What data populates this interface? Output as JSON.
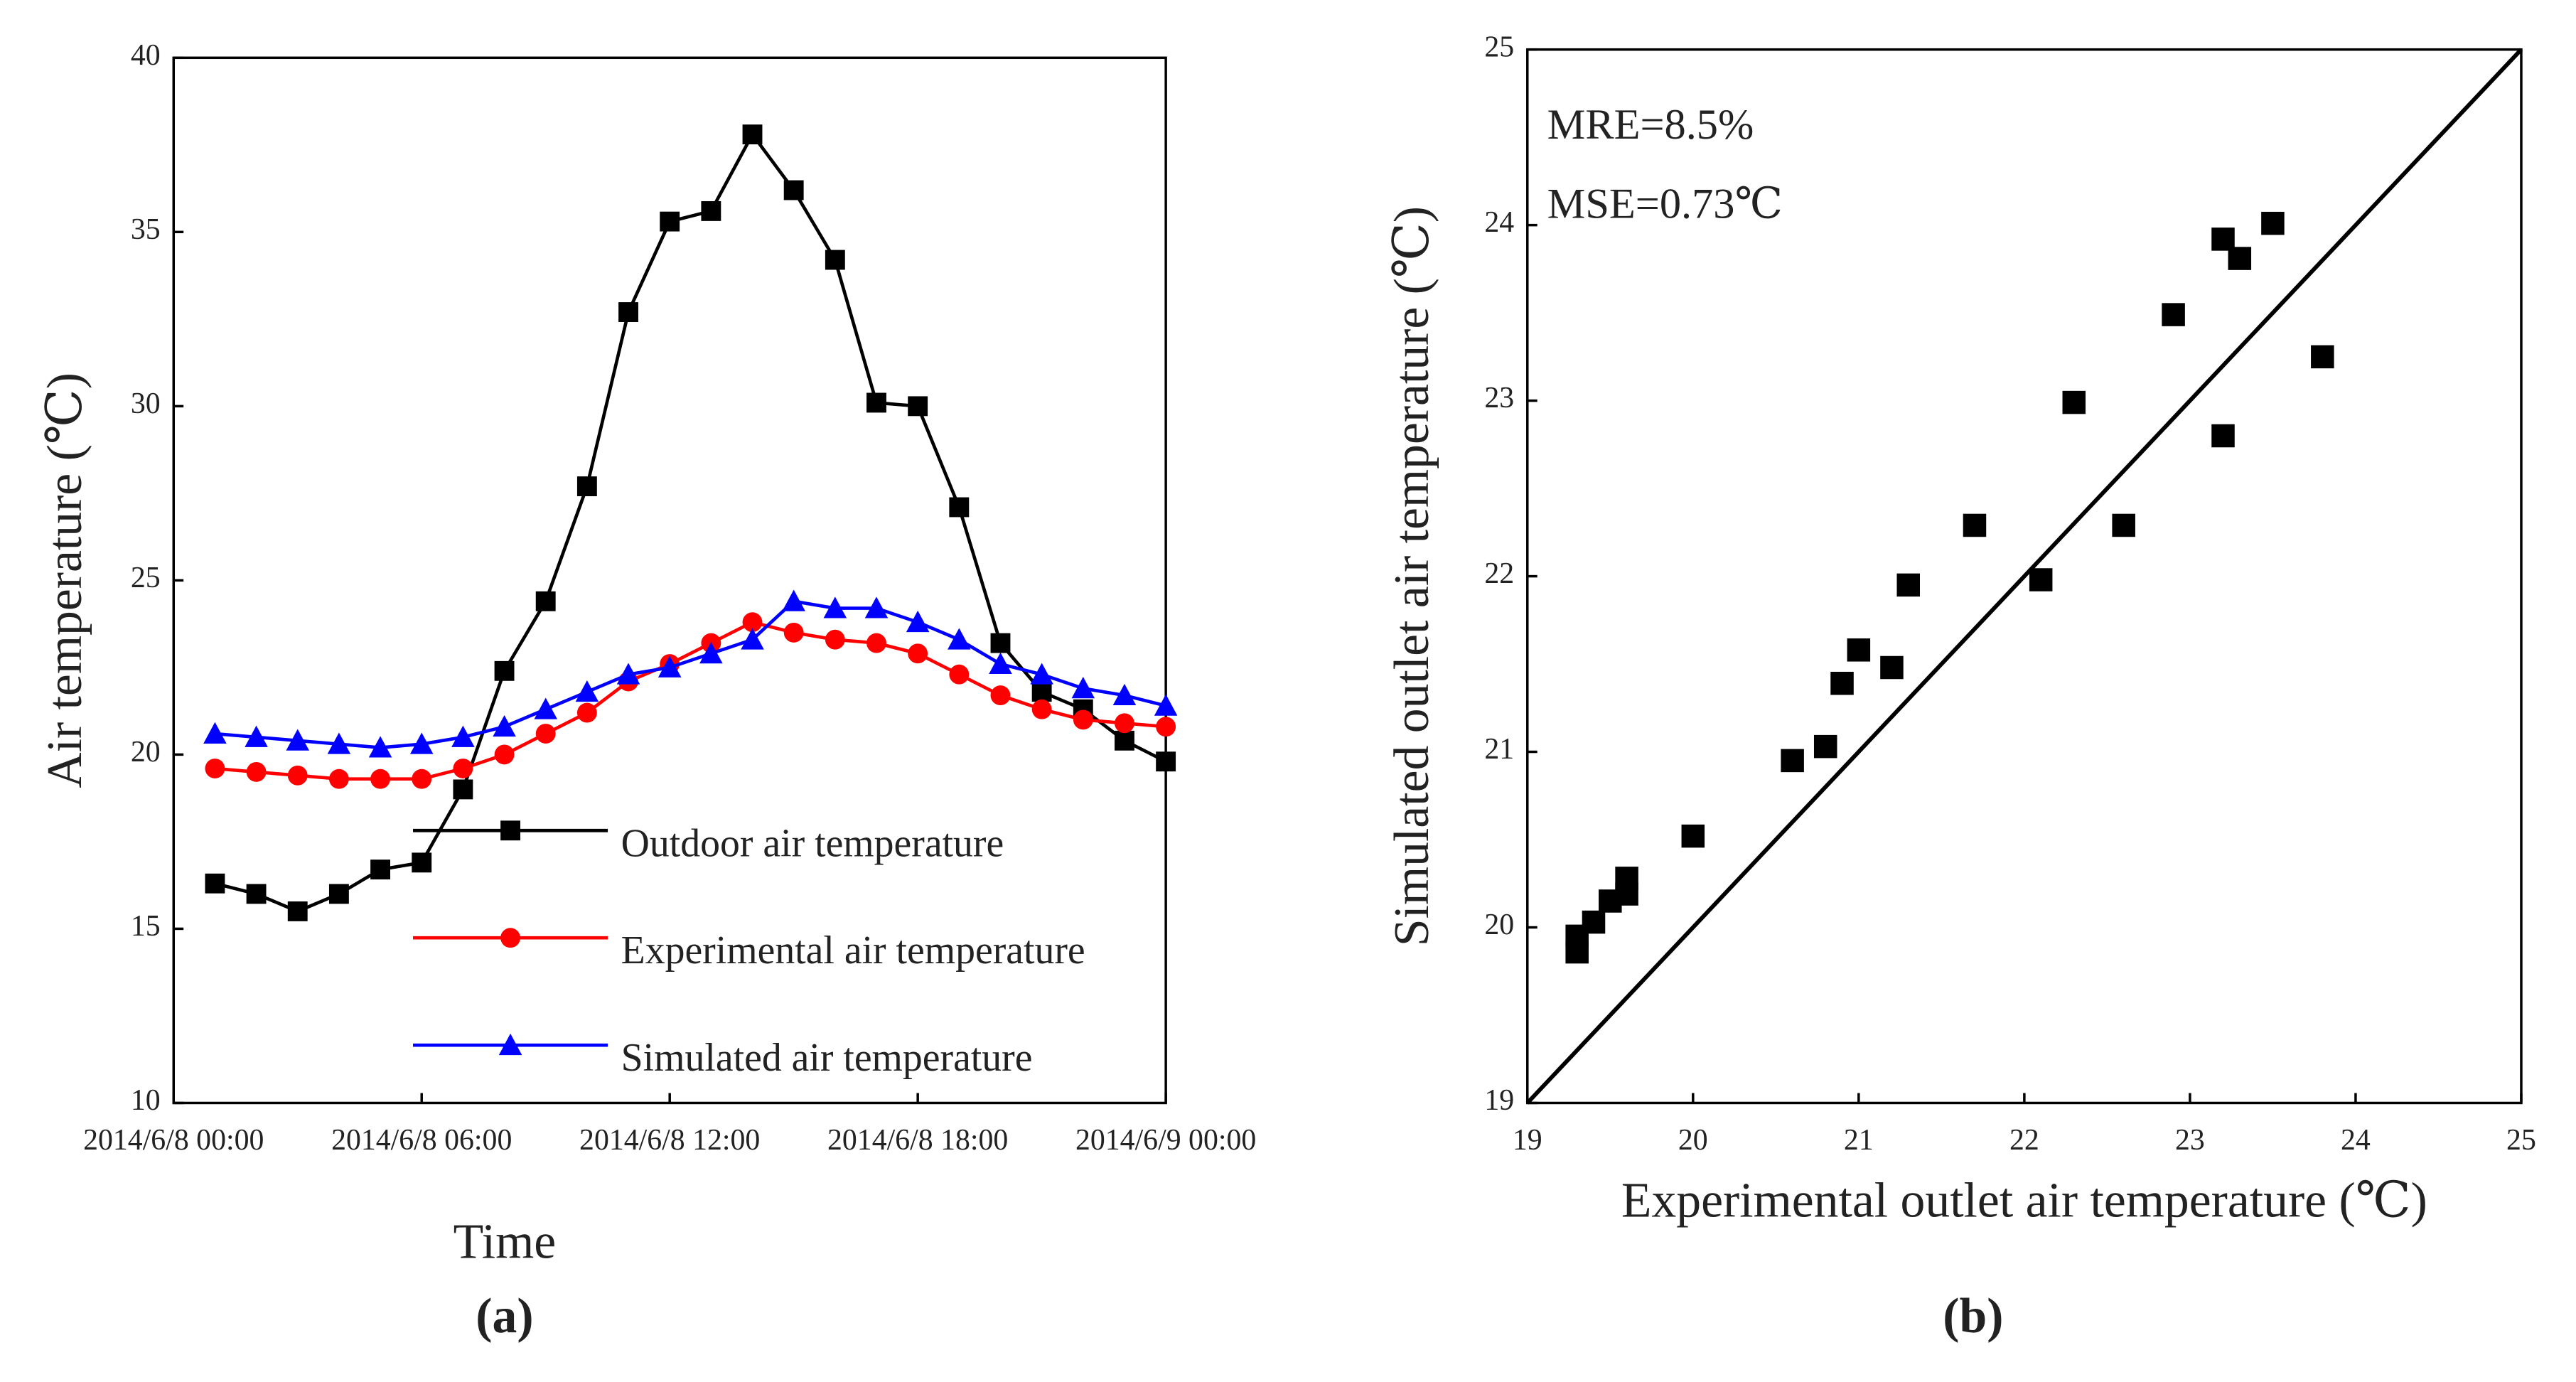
{
  "chart_data": [
    {
      "type": "line",
      "xlabel": "Time",
      "ylabel": "Air temperature (℃)",
      "caption": "(a)",
      "xlim": [
        "2014/6/8 00:00",
        "2014/6/9 00:00"
      ],
      "xticks": [
        "2014/6/8 00:00",
        "2014/6/8 06:00",
        "2014/6/8 12:00",
        "2014/6/8 18:00",
        "2014/6/9 00:00"
      ],
      "ylim": [
        10,
        40
      ],
      "yticks": [
        10,
        15,
        20,
        25,
        30,
        35,
        40
      ],
      "legend": "lower right",
      "x": [
        "2014/6/8 01:00",
        "2014/6/8 02:00",
        "2014/6/8 03:00",
        "2014/6/8 04:00",
        "2014/6/8 05:00",
        "2014/6/8 06:00",
        "2014/6/8 07:00",
        "2014/6/8 08:00",
        "2014/6/8 09:00",
        "2014/6/8 10:00",
        "2014/6/8 11:00",
        "2014/6/8 12:00",
        "2014/6/8 13:00",
        "2014/6/8 14:00",
        "2014/6/8 15:00",
        "2014/6/8 16:00",
        "2014/6/8 17:00",
        "2014/6/8 18:00",
        "2014/6/8 19:00",
        "2014/6/8 20:00",
        "2014/6/8 21:00",
        "2014/6/8 22:00",
        "2014/6/8 23:00",
        "2014/6/9 00:00"
      ],
      "series": [
        {
          "name": "Outdoor air temperature",
          "color": "#000000",
          "marker": "square",
          "values": [
            16.3,
            16.0,
            15.5,
            16.0,
            16.7,
            16.9,
            19.0,
            22.4,
            24.4,
            27.7,
            32.7,
            35.3,
            35.6,
            37.8,
            36.2,
            34.2,
            30.1,
            30.0,
            27.1,
            23.2,
            21.8,
            21.3,
            20.4,
            19.8
          ]
        },
        {
          "name": "Experimental air temperature",
          "color": "#ff0000",
          "marker": "circle",
          "values": [
            19.6,
            19.5,
            19.4,
            19.3,
            19.3,
            19.3,
            19.6,
            20.0,
            20.6,
            21.2,
            22.1,
            22.6,
            23.2,
            23.8,
            23.5,
            23.3,
            23.2,
            22.9,
            22.3,
            21.7,
            21.3,
            21.0,
            20.9,
            20.8
          ]
        },
        {
          "name": "Simulated air temperature",
          "color": "#0000ff",
          "marker": "triangle",
          "values": [
            20.6,
            20.5,
            20.4,
            20.3,
            20.2,
            20.3,
            20.5,
            20.8,
            21.3,
            21.8,
            22.3,
            22.5,
            22.9,
            23.3,
            24.4,
            24.2,
            24.2,
            23.8,
            23.3,
            22.6,
            22.3,
            21.9,
            21.7,
            21.4
          ]
        }
      ]
    },
    {
      "type": "scatter",
      "xlabel": "Experimental outlet air temperature (℃)",
      "ylabel": "Simulated outlet air temperature (℃)",
      "caption": "(b)",
      "annotations": [
        "MRE=8.5%",
        "MSE=0.73℃"
      ],
      "xlim": [
        19,
        25
      ],
      "xticks": [
        19,
        20,
        21,
        22,
        23,
        24,
        25
      ],
      "ylim": [
        19,
        25
      ],
      "yticks": [
        19,
        20,
        21,
        22,
        23,
        24,
        25
      ],
      "color": "#000000",
      "marker": "square",
      "x": [
        19.3,
        19.3,
        19.4,
        19.5,
        19.6,
        19.6,
        20.0,
        20.6,
        20.8,
        20.9,
        21.0,
        21.2,
        21.3,
        21.7,
        22.1,
        22.3,
        22.6,
        22.9,
        23.2,
        23.2,
        23.3,
        23.5,
        23.8
      ],
      "y": [
        19.95,
        19.86,
        20.03,
        20.15,
        20.28,
        20.19,
        20.52,
        20.95,
        21.03,
        21.39,
        21.58,
        21.48,
        21.95,
        22.29,
        21.98,
        22.99,
        22.29,
        23.49,
        23.92,
        22.8,
        23.81,
        24.01,
        23.25
      ]
    }
  ]
}
